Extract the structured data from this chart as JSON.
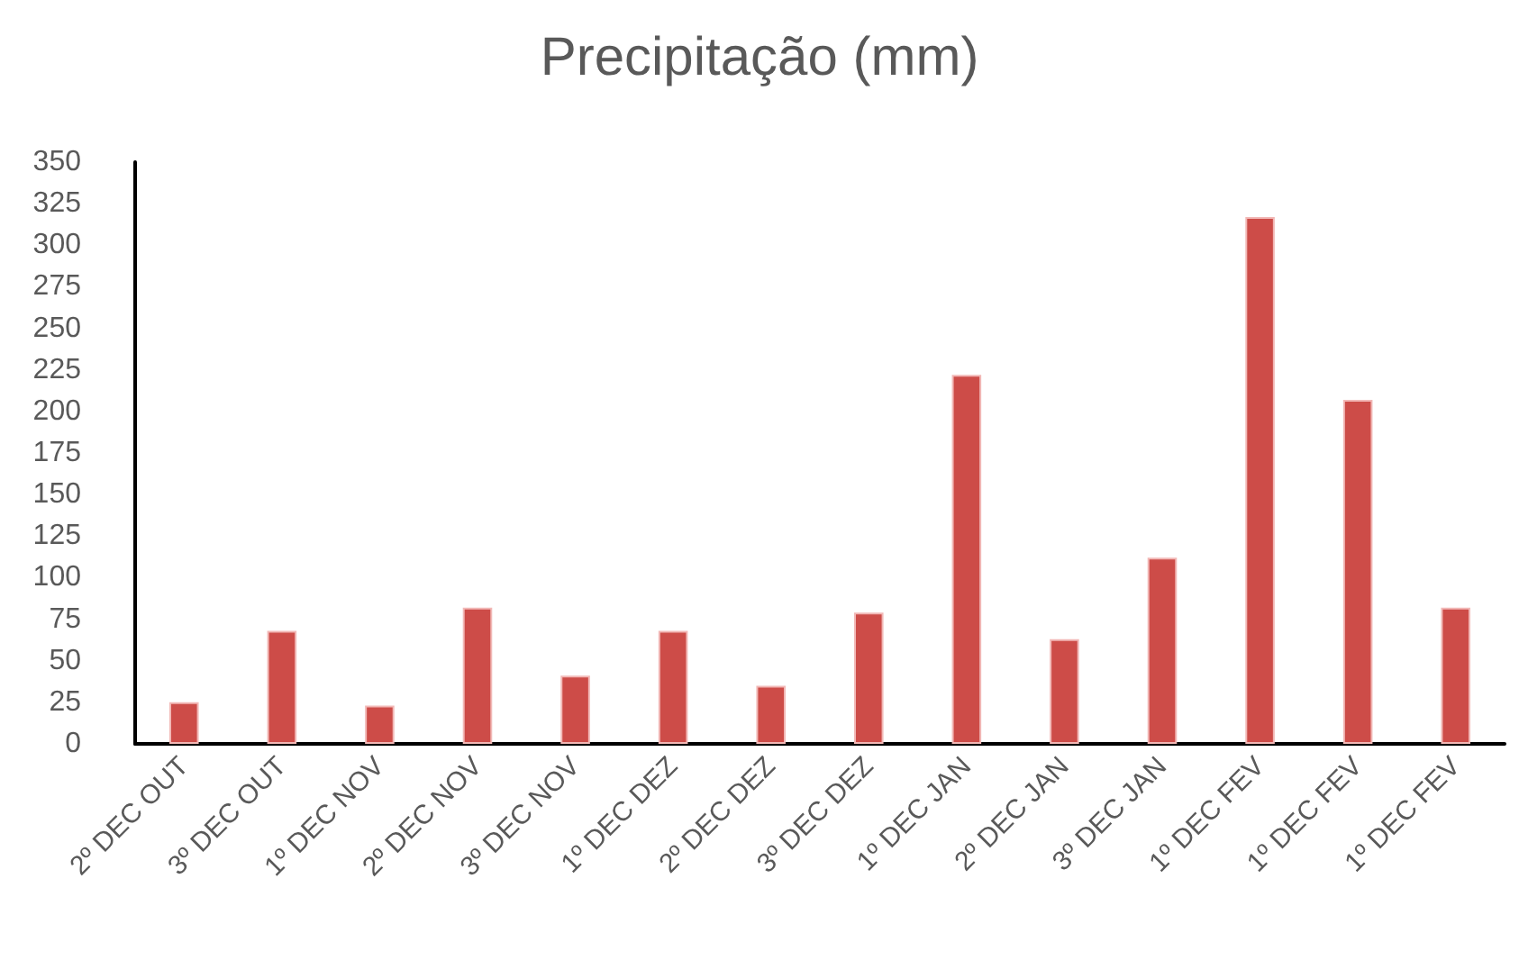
{
  "chart_data": {
    "type": "bar",
    "title": "Precipitação (mm)",
    "categories": [
      "2º DEC OUT",
      "3º DEC OUT",
      "1º DEC NOV",
      "2º DEC NOV",
      "3º DEC NOV",
      "1º DEC DEZ",
      "2º DEC DEZ",
      "3º DEC DEZ",
      "1º DEC JAN",
      "2º DEC JAN",
      "3º DEC JAN",
      "1º DEC FEV",
      "1º DEC FEV",
      "1º DEC FEV"
    ],
    "values": [
      25,
      68,
      23,
      82,
      41,
      68,
      35,
      79,
      222,
      63,
      112,
      317,
      207,
      82
    ],
    "color": "#cd4c48",
    "ylim": [
      0,
      350
    ],
    "yticks": [
      0,
      25,
      50,
      75,
      100,
      125,
      150,
      175,
      200,
      225,
      250,
      275,
      300,
      325,
      350
    ],
    "grid": false
  }
}
